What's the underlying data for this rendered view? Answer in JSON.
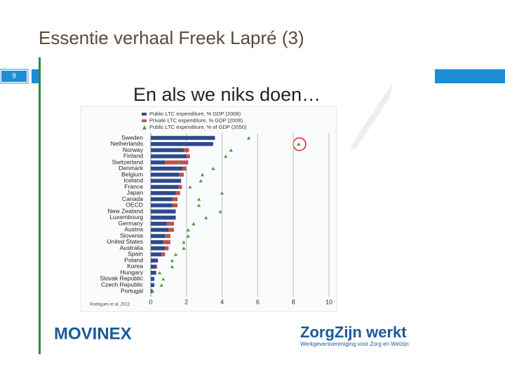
{
  "slide_title": "Essentie verhaal Freek Lapré (3)",
  "slide_number": "9",
  "logo_left": "MOVINEX",
  "logo_right": "ZorgZijn werkt",
  "logo_right_subtitle": "Werkgeversvereniging voor Zorg en Welzijn",
  "chart_data": {
    "type": "bar",
    "orientation": "horizontal",
    "stacked": true,
    "title": "En als we niks doen…",
    "source": "Rodrigues et al, 2012",
    "categories": [
      "Sweden",
      "Netherlands",
      "Norway",
      "Finland",
      "Switzerland",
      "Denmark",
      "Belgium",
      "Iceland",
      "France",
      "Japan",
      "Canada",
      "OECD",
      "New Zealand",
      "Luxembourg",
      "Germany",
      "Austria",
      "Slovenia",
      "United States",
      "Australia",
      "Spain",
      "Poland",
      "Korea",
      "Hungary",
      "Slovak Republic",
      "Czech Republic",
      "Portugal"
    ],
    "series": [
      {
        "name": "Public LTC expenditure,  % GDP (2008)",
        "color": "#2e4a8c",
        "values": [
          3.6,
          3.5,
          1.85,
          2.0,
          0.8,
          1.8,
          1.6,
          1.7,
          1.55,
          1.4,
          1.2,
          1.2,
          1.4,
          1.4,
          0.9,
          1.0,
          0.8,
          0.7,
          0.8,
          0.6,
          0.4,
          0.3,
          0.3,
          0.2,
          0.2,
          0.1
        ]
      },
      {
        "name": "Private LTC expenditure, % GDP (2008)",
        "color": "#c0504d",
        "values": [
          0,
          0,
          0.3,
          0.2,
          1.3,
          0.2,
          0.25,
          0,
          0.2,
          0.25,
          0.3,
          0.3,
          0,
          0,
          0.4,
          0.3,
          0.3,
          0.4,
          0.2,
          0.2,
          0,
          0.05,
          0,
          0,
          0,
          0
        ]
      },
      {
        "name": "Public LTC expenditure, % of GDP (2050)",
        "color": "#4f9a3c",
        "type": "scatter",
        "marker": "triangle",
        "values": [
          5.5,
          8.3,
          4.5,
          4.2,
          1.6,
          3.5,
          2.9,
          2.8,
          2.2,
          4.0,
          2.7,
          2.7,
          3.9,
          3.1,
          2.4,
          2.1,
          2.1,
          1.85,
          1.85,
          1.4,
          1.2,
          1.2,
          0.5,
          0.7,
          0.6,
          0.1
        ]
      }
    ],
    "xlim": [
      0,
      10
    ],
    "xticks": [
      0,
      2,
      4,
      6,
      8,
      10
    ],
    "grid": true,
    "legend": "top-left"
  }
}
